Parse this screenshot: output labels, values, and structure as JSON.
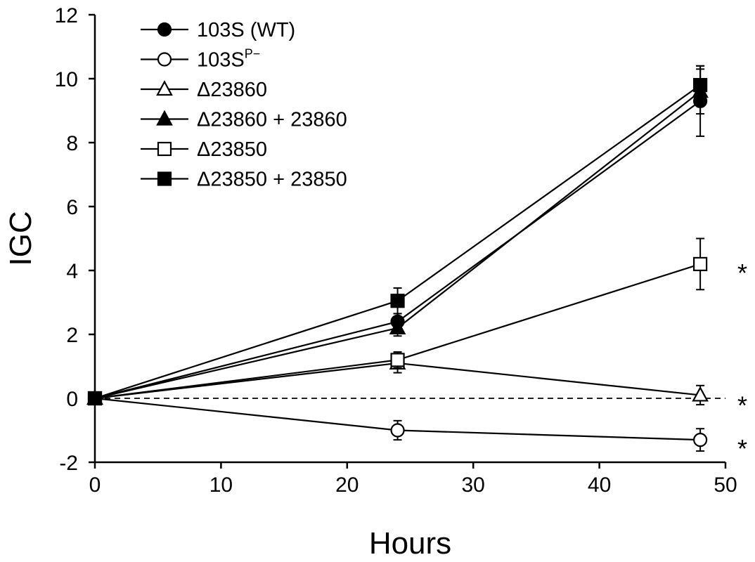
{
  "chart_data": {
    "type": "line",
    "xlabel": "Hours",
    "ylabel": "IGC",
    "xlim": [
      0,
      50
    ],
    "ylim": [
      -2,
      12
    ],
    "xticks": [
      "0",
      "10",
      "20",
      "30",
      "40",
      "50"
    ],
    "yticks": [
      "-2",
      "0",
      "2",
      "4",
      "6",
      "8",
      "10",
      "12"
    ],
    "x": [
      0,
      24,
      48
    ],
    "reference_line": {
      "y": 0,
      "style": "dashed"
    },
    "legend_position": "top-left",
    "series": [
      {
        "name": "103S (WT)",
        "marker": "circle",
        "filled": true,
        "values": [
          0,
          2.4,
          9.3
        ],
        "errors": [
          0,
          0.25,
          1.1
        ]
      },
      {
        "name": "103S",
        "name_superscript": "P−",
        "marker": "circle",
        "filled": false,
        "values": [
          0,
          -1.0,
          -1.3
        ],
        "errors": [
          0,
          0.3,
          0.35
        ]
      },
      {
        "name": "Δ23860",
        "marker": "triangle",
        "filled": false,
        "values": [
          0,
          1.1,
          0.1
        ],
        "errors": [
          0,
          0.3,
          0.3
        ]
      },
      {
        "name": "Δ23860 + 23860",
        "marker": "triangle",
        "filled": true,
        "values": [
          0,
          2.2,
          9.6
        ],
        "errors": [
          0,
          0.25,
          0.7
        ]
      },
      {
        "name": "Δ23850",
        "marker": "square",
        "filled": false,
        "values": [
          0,
          1.2,
          4.2
        ],
        "errors": [
          0,
          0.25,
          0.8
        ]
      },
      {
        "name": "Δ23850 + 23850",
        "marker": "square",
        "filled": true,
        "values": [
          0,
          3.05,
          9.8
        ],
        "errors": [
          0,
          0.4,
          0.6
        ]
      }
    ],
    "annotations": [
      {
        "text": "*",
        "y": 4.2
      },
      {
        "text": "*",
        "y": 0.05
      },
      {
        "text": "*",
        "y": -1.3
      }
    ]
  }
}
